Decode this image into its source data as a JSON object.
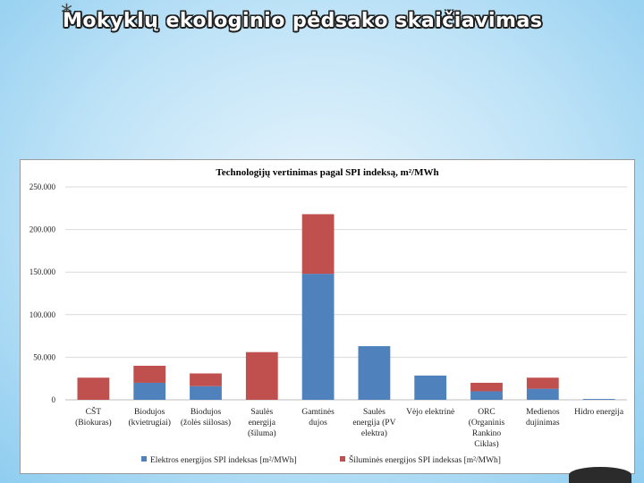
{
  "slide": {
    "bullet": "*",
    "title": "Mokyklų ekologinio pėdsako skaičiavimas"
  },
  "colors": {
    "electric": "#4f81bd",
    "thermal": "#c0504d",
    "grid": "#d9d9d9"
  },
  "chart_data": {
    "type": "bar",
    "stacked": true,
    "title": "Technologijų vertinimas pagal SPI indeksą, m²/MWh",
    "xlabel": "",
    "ylabel": "",
    "ylim": [
      0,
      250000
    ],
    "yticks": [
      0,
      50000,
      100000,
      150000,
      200000,
      250000
    ],
    "ytick_labels": [
      "0",
      "50.000",
      "100.000",
      "150.000",
      "200.000",
      "250.000"
    ],
    "grid": true,
    "legend_position": "bottom",
    "categories": [
      [
        "CŠT",
        "(Biokuras)"
      ],
      [
        "Biodujos",
        "(kvietrugiai)"
      ],
      [
        "Biodujos",
        "(žolės siilosas)"
      ],
      [
        "Saulės",
        "energija",
        "(šiluma)"
      ],
      [
        "Gamtinės",
        "dujos"
      ],
      [
        "Saulės",
        "energija (PV",
        "elektra)"
      ],
      [
        "Vėjo elektrinė"
      ],
      [
        "ORC",
        "(Organinis",
        "Rankino",
        "Ciklas)"
      ],
      [
        "Medienos",
        "dujinimas"
      ],
      [
        "Hidro energija"
      ]
    ],
    "series": [
      {
        "name": "Elektros energijos SPI indeksas [m²/MWh]",
        "color": "#4f81bd",
        "values": [
          0,
          20000,
          16000,
          0,
          148000,
          63000,
          28500,
          10000,
          13000,
          1000
        ]
      },
      {
        "name": "Šiluminės energijos SPI indeksas [m²/MWh]",
        "color": "#c0504d",
        "values": [
          26000,
          20000,
          15000,
          56000,
          70000,
          0,
          0,
          10000,
          13000,
          0
        ]
      }
    ]
  }
}
